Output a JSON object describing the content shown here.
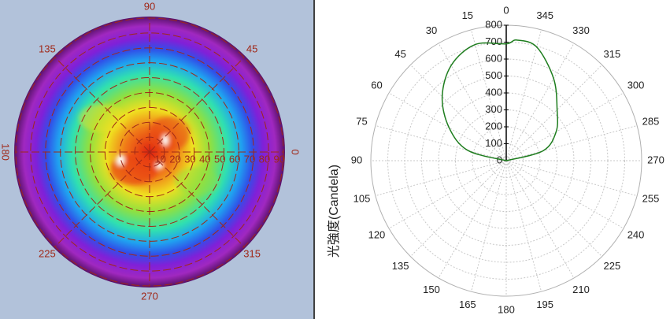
{
  "chart_data": [
    {
      "type": "polar-heatmap",
      "thetaticks": [
        0,
        45,
        90,
        135,
        180,
        225,
        270,
        315
      ],
      "rlim": [
        0,
        90
      ],
      "rticks": [
        10,
        20,
        30,
        40,
        50,
        60,
        70,
        80,
        90
      ]
    },
    {
      "type": "polar-line",
      "ylabel": "光強度(Candela)",
      "theta_direction": "counterclockwise",
      "theta_zero": "top",
      "thetaticks": [
        0,
        15,
        30,
        45,
        60,
        75,
        90,
        105,
        120,
        135,
        150,
        165,
        180,
        195,
        210,
        225,
        240,
        255,
        270,
        285,
        300,
        315,
        330,
        345
      ],
      "rlim": [
        0,
        800
      ],
      "rticks": [
        0,
        100,
        200,
        300,
        400,
        500,
        600,
        700,
        800
      ],
      "grid": true,
      "series": [
        {
          "color": "#1e7d1e",
          "theta": [
            270,
            285,
            300,
            315,
            330,
            345,
            355,
            0,
            15,
            30,
            45,
            60,
            75,
            90
          ],
          "values": [
            0,
            225,
            340,
            425,
            560,
            695,
            715,
            690,
            710,
            650,
            535,
            390,
            235,
            0
          ]
        }
      ]
    }
  ]
}
